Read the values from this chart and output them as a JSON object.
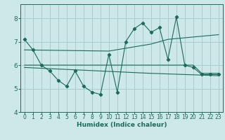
{
  "xlabel": "Humidex (Indice chaleur)",
  "background_color": "#cce8e8",
  "grid_color": "#aacccc",
  "line_color": "#1a6b5a",
  "xlim": [
    -0.5,
    23.5
  ],
  "ylim": [
    4,
    8.6
  ],
  "yticks": [
    4,
    5,
    6,
    7,
    8
  ],
  "xticks": [
    0,
    1,
    2,
    3,
    4,
    5,
    6,
    7,
    8,
    9,
    10,
    11,
    12,
    13,
    14,
    15,
    16,
    17,
    18,
    19,
    20,
    21,
    22,
    23
  ],
  "series1_x": [
    0,
    1,
    2,
    3,
    4,
    5,
    6,
    7,
    8,
    9,
    10,
    11,
    12,
    13,
    14,
    15,
    16,
    17,
    18,
    19,
    20,
    21,
    22,
    23
  ],
  "series1_y": [
    7.1,
    6.65,
    6.0,
    5.75,
    5.35,
    5.1,
    5.75,
    5.1,
    4.85,
    4.75,
    6.45,
    4.85,
    7.0,
    7.55,
    7.8,
    7.4,
    7.6,
    6.25,
    8.05,
    6.0,
    5.9,
    5.6,
    5.6,
    5.6
  ],
  "series2_x": [
    0,
    1,
    2,
    3,
    4,
    5,
    6,
    7,
    8,
    9,
    10,
    11,
    12,
    13,
    14,
    15,
    16,
    17,
    18,
    19,
    20,
    21,
    22,
    23
  ],
  "series2_y": [
    6.0,
    6.0,
    6.0,
    6.0,
    6.0,
    6.0,
    6.0,
    6.0,
    6.0,
    6.0,
    6.0,
    6.0,
    6.0,
    6.0,
    6.0,
    6.0,
    6.0,
    6.0,
    6.0,
    6.0,
    6.0,
    5.65,
    5.65,
    5.65
  ],
  "series3_x": [
    0,
    10,
    15,
    17,
    23
  ],
  "series3_y": [
    6.65,
    6.6,
    6.9,
    7.1,
    7.3
  ],
  "series4_x": [
    0,
    9,
    15,
    19,
    23
  ],
  "series4_y": [
    5.9,
    5.75,
    5.65,
    5.6,
    5.55
  ]
}
